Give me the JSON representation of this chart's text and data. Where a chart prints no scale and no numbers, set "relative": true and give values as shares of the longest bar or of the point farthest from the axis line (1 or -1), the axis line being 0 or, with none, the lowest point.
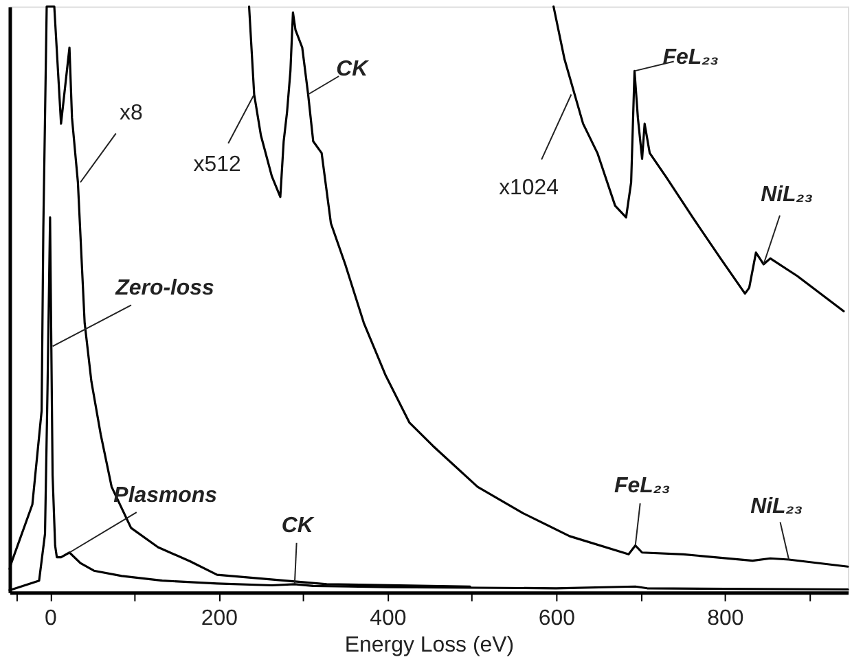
{
  "chart_data": {
    "type": "line",
    "relative": true,
    "xlabel": "Energy Loss (eV)",
    "xlim": [
      -48,
      946
    ],
    "xticks": [
      {
        "value": -40,
        "label": null
      },
      0,
      {
        "value": 100,
        "label": null
      },
      200,
      {
        "value": 300,
        "label": null
      },
      400,
      {
        "value": 500,
        "label": null
      },
      600,
      {
        "value": 700,
        "label": null
      },
      800,
      {
        "value": 900,
        "label": null
      }
    ],
    "tick_labels": "x",
    "legend": false,
    "grid": false,
    "line_style": "solid",
    "marker": "none",
    "series": [
      {
        "color": "#000000",
        "x": [
          -48,
          -45,
          -13,
          -6,
          -3,
          0,
          3,
          6,
          8,
          13,
          23,
          36,
          52,
          85,
          133,
          198,
          263,
          290,
          312,
          400,
          600,
          694,
          708,
          800,
          946
        ],
        "values": [
          0.004,
          0.005,
          0.02,
          0.1,
          0.35,
          0.64,
          0.2,
          0.08,
          0.06,
          0.06,
          0.068,
          0.05,
          0.037,
          0.028,
          0.02,
          0.015,
          0.012,
          0.014,
          0.011,
          0.009,
          0.007,
          0.01,
          0.007,
          0.006,
          0.005
        ]
      },
      {
        "color": "#000000",
        "x": [
          -48,
          -46,
          -21,
          -10,
          -8,
          -4,
          5,
          13,
          23,
          26,
          33,
          41,
          49,
          60,
          73,
          96,
          128,
          166,
          198,
          328,
          498
        ],
        "values": [
          0.04,
          0.05,
          0.15,
          0.31,
          0.62,
          1,
          1,
          0.8,
          0.93,
          0.81,
          0.7,
          0.46,
          0.36,
          0.27,
          0.18,
          0.11,
          0.077,
          0.053,
          0.03,
          0.014,
          0.01
        ]
      },
      {
        "color": "#000000",
        "x": [
          236,
          242,
          250,
          263,
          273,
          277,
          281,
          285,
          288,
          291,
          299,
          306,
          312,
          322,
          333,
          350,
          372,
          398,
          426,
          454,
          507,
          561,
          616,
          686,
          694,
          702,
          751,
          833,
          854,
          876,
          946
        ],
        "values": [
          1,
          0.85,
          0.78,
          0.71,
          0.675,
          0.77,
          0.82,
          0.89,
          0.99,
          0.96,
          0.93,
          0.85,
          0.77,
          0.75,
          0.63,
          0.56,
          0.46,
          0.37,
          0.29,
          0.25,
          0.18,
          0.135,
          0.096,
          0.065,
          0.08,
          0.068,
          0.065,
          0.054,
          0.058,
          0.056,
          0.044
        ]
      },
      {
        "color": "#000000",
        "x": [
          597,
          610,
          632,
          649,
          670,
          683,
          689,
          693,
          697,
          702,
          705,
          711,
          730,
          762,
          795,
          824,
          829,
          837,
          846,
          854,
          886,
          941
        ],
        "values": [
          1,
          0.91,
          0.8,
          0.75,
          0.66,
          0.64,
          0.7,
          0.89,
          0.81,
          0.74,
          0.8,
          0.75,
          0.71,
          0.64,
          0.57,
          0.51,
          0.52,
          0.58,
          0.56,
          0.57,
          0.54,
          0.48
        ]
      }
    ],
    "annotations": [
      {
        "text": "x8",
        "x": 36,
        "y": 0.7
      },
      {
        "text": "x512",
        "x": 242,
        "y": 0.85
      },
      {
        "text": "CK",
        "x": 306,
        "y": 0.85
      },
      {
        "text": "x1024",
        "x": 618,
        "y": 0.85
      },
      {
        "text": "FeL₂₃",
        "x": 693,
        "y": 0.89
      },
      {
        "text": "NiL₂₃",
        "x": 846,
        "y": 0.56
      },
      {
        "text": "Zero-loss",
        "x": 3,
        "y": 0.42
      },
      {
        "text": "Plasmons",
        "x": 23,
        "y": 0.068
      },
      {
        "text": "CK",
        "x": 290,
        "y": 0.014
      },
      {
        "text": "FeL₂₃",
        "x": 694,
        "y": 0.08
      },
      {
        "text": "NiL₂₃",
        "x": 876,
        "y": 0.056
      }
    ]
  }
}
